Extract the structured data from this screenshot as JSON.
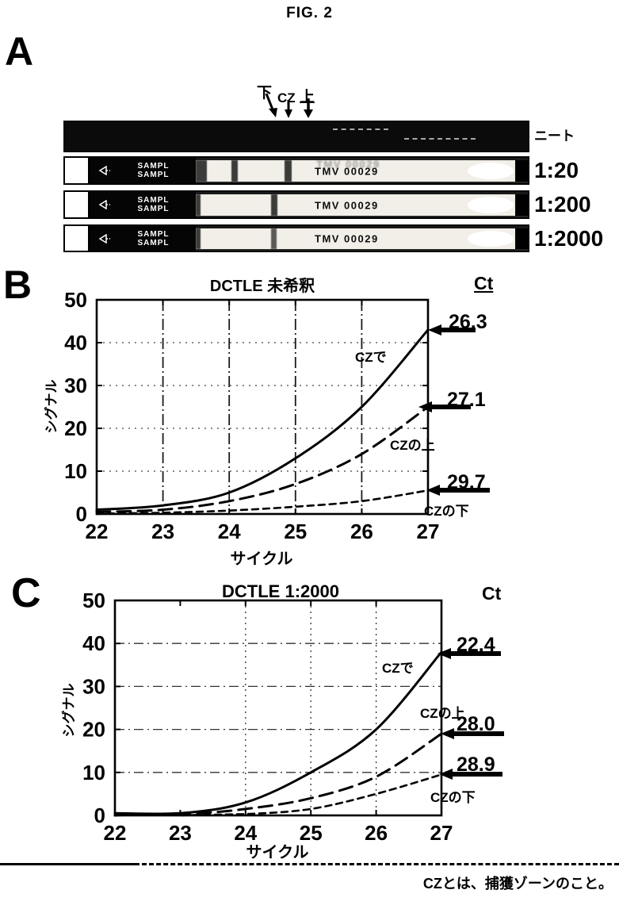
{
  "figure_title": "FIG. 2",
  "footnote": "CZとは、捕獲ゾーンのこと。",
  "panel_a": {
    "label": "A",
    "markers": {
      "down": "下",
      "cz": "CZ",
      "up": "上"
    },
    "strips": [
      {
        "left_label": "+",
        "right_label": "ニート"
      },
      {
        "left_label": "+",
        "right_label": "1:20",
        "sample_text": "SAMPL",
        "sample_text2": "SAMPL",
        "code_text": "TMV 00029"
      },
      {
        "left_label": "-/+",
        "right_label": "1:200",
        "sample_text": "SAMPL",
        "sample_text2": "SAMPL",
        "code_text": "TMV 00029"
      },
      {
        "left_label": "-",
        "right_label": "1:2000",
        "sample_text": "SAMPL",
        "sample_text2": "SAMPL",
        "code_text": "TMV 00029"
      }
    ]
  },
  "panel_b": {
    "label": "B",
    "ct_header": "Ct"
  },
  "panel_c": {
    "label": "C",
    "ct_header": "Ct"
  },
  "chart_data": [
    {
      "type": "line",
      "title": "DCTLE  未希釈",
      "xlabel": "サイクル",
      "ylabel": "シグナル",
      "x": [
        22,
        23,
        24,
        25,
        26,
        27
      ],
      "xlim": [
        22,
        27
      ],
      "ylim": [
        0,
        50
      ],
      "yticks": [
        0,
        10,
        20,
        30,
        40,
        50
      ],
      "grid_x": [
        23,
        24,
        25,
        26
      ],
      "grid_y": [
        10,
        20,
        30,
        40
      ],
      "ct_header": "Ct",
      "series": [
        {
          "name": "CZで",
          "style": "solid",
          "values": [
            1,
            2,
            5,
            13,
            25,
            43
          ],
          "ct_label": "26.3"
        },
        {
          "name": "CZの上",
          "style": "long-dash",
          "values": [
            0.5,
            1,
            3,
            7,
            14,
            25
          ],
          "ct_label": "27.1"
        },
        {
          "name": "CZの下",
          "style": "short-dash",
          "values": [
            0,
            0.3,
            0.8,
            1.7,
            3,
            5.5
          ],
          "ct_label": "29.7"
        }
      ]
    },
    {
      "type": "line",
      "title": "DCTLE 1:2000",
      "xlabel": "サイクル",
      "ylabel": "シグナル",
      "x": [
        22,
        23,
        24,
        25,
        26,
        27
      ],
      "xlim": [
        22,
        27
      ],
      "ylim": [
        0,
        50
      ],
      "yticks": [
        0,
        10,
        20,
        30,
        40,
        50
      ],
      "grid_x": [
        24,
        25,
        26
      ],
      "grid_y": [
        10,
        20,
        30,
        40
      ],
      "ct_header": "Ct",
      "series": [
        {
          "name": "CZで",
          "style": "solid",
          "values": [
            0.5,
            0.5,
            3,
            10,
            20,
            38
          ],
          "ct_label": "22.4"
        },
        {
          "name": "CZの上",
          "style": "long-dash",
          "values": [
            0,
            0.2,
            1.5,
            4,
            9,
            19
          ],
          "ct_label": "28.0"
        },
        {
          "name": "CZの下",
          "style": "short-dash",
          "values": [
            0,
            0,
            0.3,
            1.5,
            5,
            9.5
          ],
          "ct_label": "28.9"
        }
      ]
    }
  ]
}
